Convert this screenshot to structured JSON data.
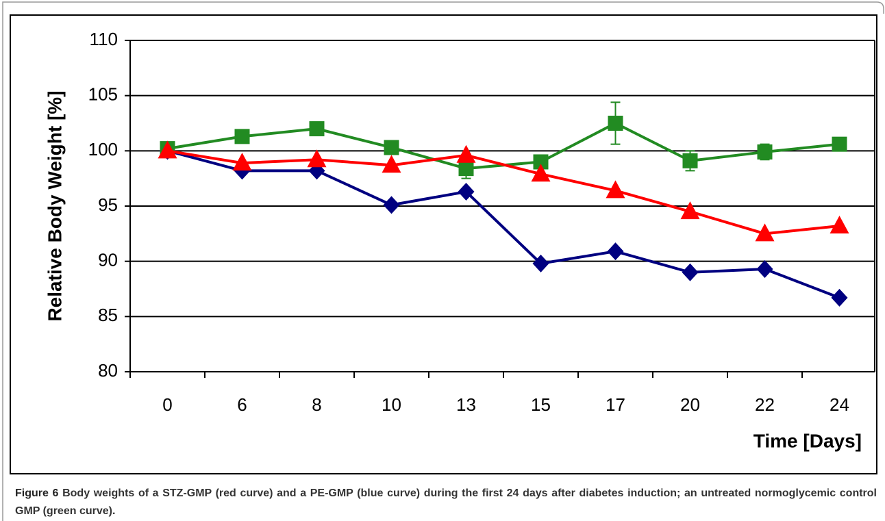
{
  "chart_data": {
    "type": "line",
    "y_label": "Relative Body Weight [%]",
    "x_label": "Time [Days]",
    "categories": [
      "0",
      "6",
      "8",
      "10",
      "13",
      "15",
      "17",
      "20",
      "22",
      "24"
    ],
    "ylim": [
      80,
      110
    ],
    "yticks": [
      80,
      85,
      90,
      95,
      100,
      105,
      110
    ],
    "grid": true,
    "series": [
      {
        "color": "#000080",
        "marker": "diamond",
        "values": [
          100,
          98.2,
          98.2,
          95.1,
          96.3,
          89.8,
          90.9,
          89.0,
          89.3,
          86.7
        ]
      },
      {
        "color": "#228B22",
        "marker": "square",
        "values": [
          100.2,
          101.3,
          102.0,
          100.3,
          98.4,
          99.0,
          102.5,
          99.1,
          99.9,
          100.6
        ],
        "errors": [
          0.2,
          0.3,
          0.6,
          0.6,
          0.9,
          0.3,
          1.9,
          0.9,
          0.7,
          0.3
        ]
      },
      {
        "color": "#FF0000",
        "marker": "triangle",
        "values": [
          100,
          98.9,
          99.2,
          98.7,
          99.6,
          97.9,
          96.4,
          94.5,
          92.5,
          93.2
        ]
      }
    ]
  },
  "caption": {
    "label": "Figure 6",
    "text": "Body weights of a STZ-GMP (red curve) and a PE-GMP (blue curve) during the first 24 days after diabetes induction; an untreated normoglycemic control GMP (green curve)."
  }
}
